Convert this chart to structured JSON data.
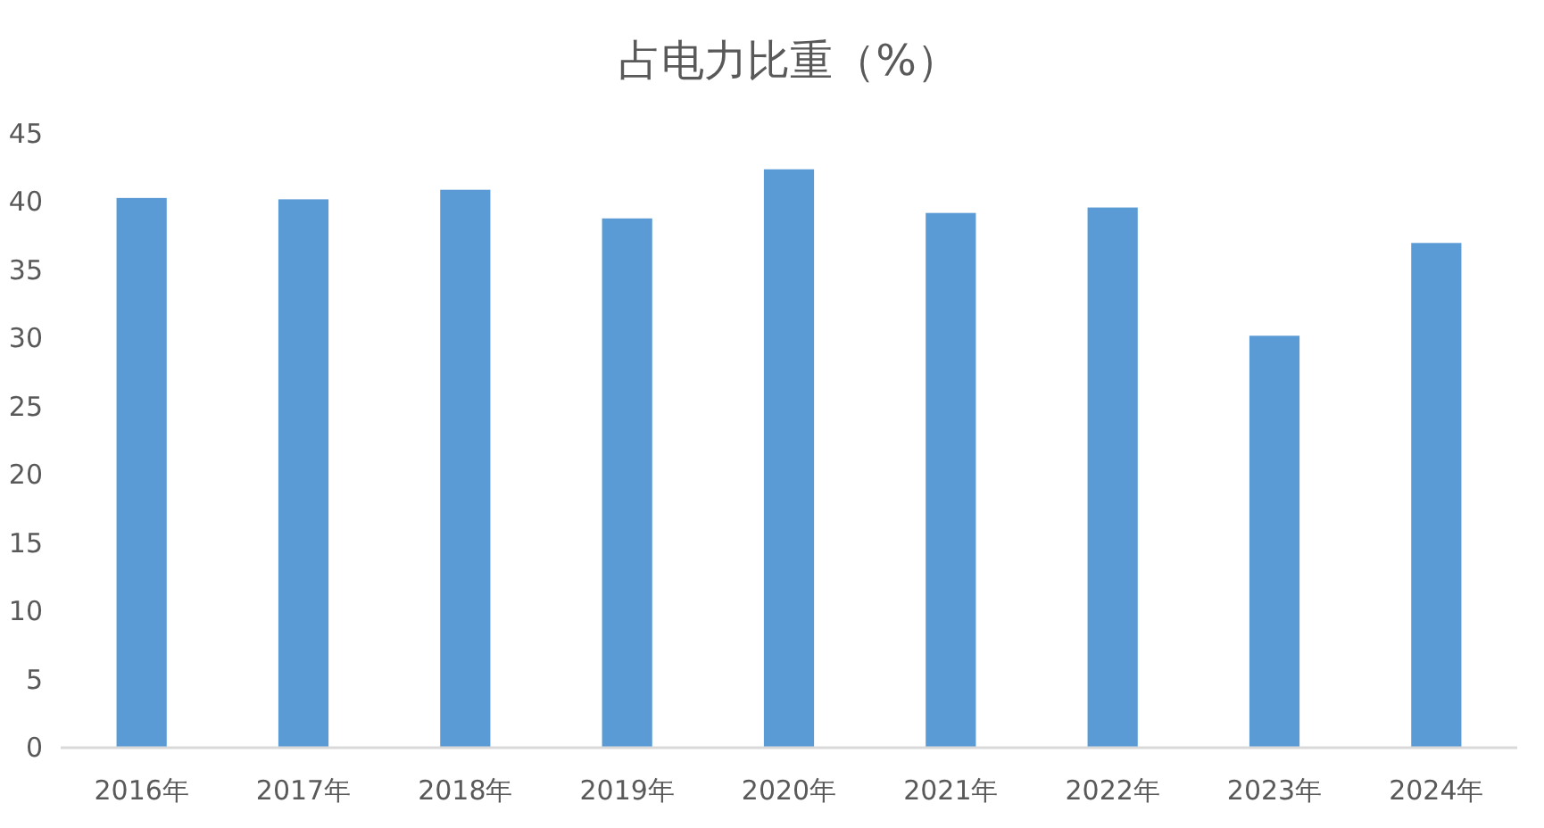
{
  "chart_data": {
    "type": "bar",
    "title": "占电力比重（%）",
    "categories": [
      "2016年",
      "2017年",
      "2018年",
      "2019年",
      "2020年",
      "2021年",
      "2022年",
      "2023年",
      "2024年"
    ],
    "values": [
      40.3,
      40.2,
      40.9,
      38.8,
      42.4,
      39.2,
      39.6,
      30.2,
      37.0
    ],
    "color": "#5b9bd5",
    "ylim": [
      0,
      45
    ],
    "yticks": [
      0,
      5,
      10,
      15,
      20,
      25,
      30,
      35,
      40,
      45
    ]
  }
}
